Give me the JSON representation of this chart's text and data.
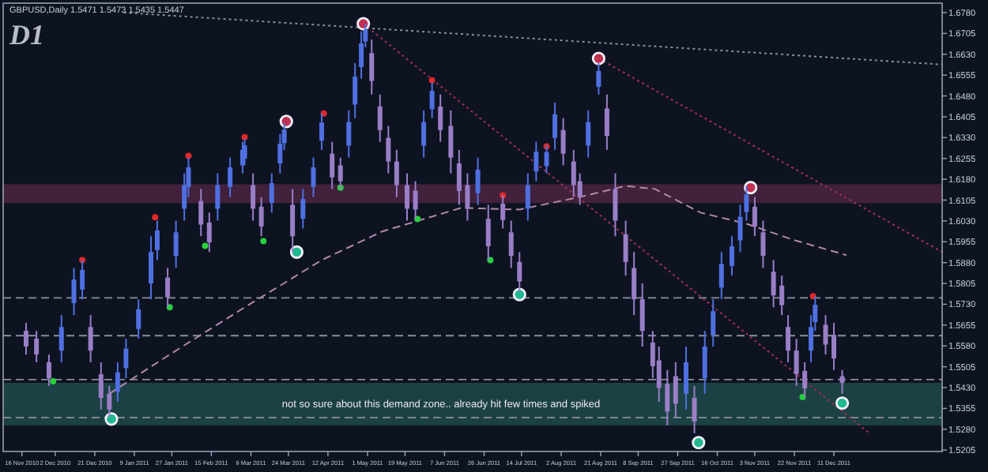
{
  "chart_data": {
    "type": "candlestick",
    "title": "GBPUSD,Daily  1.5471 1.5473 1.5435 1.5447",
    "subtitle": "D1",
    "xlim": [
      "2010-11-07",
      "2012-02-01"
    ],
    "xticks": [
      {
        "value": "2010-11-16",
        "label": "16 Nov 2010"
      },
      {
        "value": "2010-12-02",
        "label": "2 Dec 2010"
      },
      {
        "value": "2010-12-21",
        "label": "21 Dec 2010"
      },
      {
        "value": "2011-01-09",
        "label": "9 Jan 2011"
      },
      {
        "value": "2011-01-27",
        "label": "27 Jan 2011"
      },
      {
        "value": "2011-02-15",
        "label": "15 Feb 2011"
      },
      {
        "value": "2011-03-06",
        "label": "6 Mar 2011"
      },
      {
        "value": "2011-03-24",
        "label": "24 Mar 2011"
      },
      {
        "value": "2011-04-12",
        "label": "12 Apr 2011"
      },
      {
        "value": "2011-05-01",
        "label": "1 May 2011"
      },
      {
        "value": "2011-05-19",
        "label": "19 May 2011"
      },
      {
        "value": "2011-06-07",
        "label": "7 Jun 2011"
      },
      {
        "value": "2011-06-26",
        "label": "26 Jun 2011"
      },
      {
        "value": "2011-07-14",
        "label": "14 Jul 2011"
      },
      {
        "value": "2011-08-02",
        "label": "2 Aug 2011"
      },
      {
        "value": "2011-08-21",
        "label": "21 Aug 2011"
      },
      {
        "value": "2011-09-08",
        "label": "8 Sep 2011"
      },
      {
        "value": "2011-09-27",
        "label": "27 Sep 2011"
      },
      {
        "value": "2011-10-16",
        "label": "16 Oct 2011"
      },
      {
        "value": "2011-11-03",
        "label": "3 Nov 2011"
      },
      {
        "value": "2011-11-22",
        "label": "22 Nov 2011"
      },
      {
        "value": "2011-12-11",
        "label": "11 Dec 2011"
      }
    ],
    "ylim": [
      1.52,
      1.6814
    ],
    "yticks": [
      {
        "value": 1.678,
        "label": "1.6780"
      },
      {
        "value": 1.6705,
        "label": "1.6705"
      },
      {
        "value": 1.663,
        "label": "1.6630"
      },
      {
        "value": 1.6555,
        "label": "1.6555"
      },
      {
        "value": 1.648,
        "label": "1.6480"
      },
      {
        "value": 1.6405,
        "label": "1.6405"
      },
      {
        "value": 1.633,
        "label": "1.6330"
      },
      {
        "value": 1.6255,
        "label": "1.6255"
      },
      {
        "value": 1.618,
        "label": "1.6180"
      },
      {
        "value": 1.6105,
        "label": "1.6105"
      },
      {
        "value": 1.603,
        "label": "1.6030"
      },
      {
        "value": 1.5955,
        "label": "1.5955"
      },
      {
        "value": 1.588,
        "label": "1.5880"
      },
      {
        "value": 1.5805,
        "label": "1.5805"
      },
      {
        "value": 1.573,
        "label": "1.5730"
      },
      {
        "value": 1.5655,
        "label": "1.5655"
      },
      {
        "value": 1.558,
        "label": "1.5580"
      },
      {
        "value": 1.5505,
        "label": "1.5505"
      },
      {
        "value": 1.543,
        "label": "1.5430"
      },
      {
        "value": 1.5355,
        "label": "1.5355"
      },
      {
        "value": 1.528,
        "label": "1.5280"
      },
      {
        "value": 1.5205,
        "label": "1.5205"
      }
    ],
    "grid": false,
    "bands": [
      {
        "axis": "y",
        "from": 1.5294,
        "to": 1.5447,
        "color": "#1f4a4a",
        "label": "not so sure about this demand zone.. already hit few times and spiked"
      },
      {
        "axis": "y",
        "from": 1.6094,
        "to": 1.6162,
        "color": "#4a2540"
      }
    ],
    "ref_lines": [
      {
        "axis": "y",
        "value": 1.5753,
        "color": "#8a8f9c",
        "line_style": "dashed"
      },
      {
        "axis": "y",
        "value": 1.5617,
        "color": "#8a8f9c",
        "line_style": "dashed"
      },
      {
        "axis": "y",
        "value": 1.5459,
        "color": "#8a8f9c",
        "line_style": "dashed"
      },
      {
        "axis": "y",
        "value": 1.5322,
        "color": "#8a8f9c",
        "line_style": "dashed"
      }
    ],
    "series": [
      {
        "type": "line",
        "color": "#b08aa8",
        "line_style": "dashed",
        "x": [
          "2010-12-28",
          "2011-01-26",
          "2011-03-03",
          "2011-04-09",
          "2011-05-08",
          "2011-06-15",
          "2011-07-13",
          "2011-08-11",
          "2011-09-02",
          "2011-09-16",
          "2011-10-08",
          "2011-10-30",
          "2011-11-21",
          "2011-12-17"
        ],
        "values": [
          1.5408,
          1.5549,
          1.5719,
          1.5889,
          1.5992,
          1.6077,
          1.6071,
          1.6116,
          1.6156,
          1.6145,
          1.606,
          1.602,
          1.5963,
          1.5907
        ]
      },
      {
        "type": "line",
        "color": "#8a8f9c",
        "line_style": "dotted",
        "x": [
          "2011-01-04",
          "2012-02-01"
        ],
        "values": [
          1.678,
          1.6593
        ]
      },
      {
        "type": "line",
        "color": "#a03050",
        "line_style": "dotted",
        "x": [
          "2011-04-29",
          "2011-12-28"
        ],
        "values": [
          1.674,
          1.5266
        ]
      },
      {
        "type": "line",
        "color": "#a03050",
        "line_style": "dotted",
        "x": [
          "2011-08-20",
          "2012-02-01"
        ],
        "values": [
          1.6615,
          1.5918
        ]
      },
      {
        "color": "#4f70e0",
        "x": [
          "2010-12-05",
          "2010-12-11",
          "2010-12-15",
          "2011-01-01",
          "2011-01-05",
          "2011-01-11",
          "2011-01-17",
          "2011-01-20",
          "2011-01-29",
          "2011-02-02",
          "2011-02-04",
          "2011-02-18",
          "2011-02-24",
          "2011-03-02",
          "2011-03-03",
          "2011-03-16",
          "2011-03-20",
          "2011-03-22",
          "2011-03-31",
          "2011-04-05",
          "2011-04-09",
          "2011-04-22",
          "2011-04-25",
          "2011-04-28",
          "2011-04-30",
          "2011-05-28",
          "2011-06-01",
          "2011-06-23",
          "2011-07-17",
          "2011-07-21",
          "2011-07-26",
          "2011-07-30",
          "2011-08-15",
          "2011-08-20",
          "2011-10-01",
          "2011-10-10",
          "2011-10-14",
          "2011-10-18",
          "2011-10-23",
          "2011-10-27",
          "2011-10-30",
          "2011-11-30",
          "2011-12-02"
        ],
        "ohlc": [
          [
            1.5563,
            1.5691,
            1.5521,
            1.5648
          ],
          [
            1.5734,
            1.5861,
            1.5691,
            1.5819
          ],
          [
            1.5783,
            1.5889,
            1.5748,
            1.5854
          ],
          [
            1.5415,
            1.5521,
            1.5379,
            1.5485
          ],
          [
            1.55,
            1.5606,
            1.5464,
            1.557
          ],
          [
            1.5641,
            1.5748,
            1.5606,
            1.5712
          ],
          [
            1.5805,
            1.5975,
            1.5748,
            1.5918
          ],
          [
            1.5925,
            1.6031,
            1.5889,
            1.5996
          ],
          [
            1.5904,
            1.6031,
            1.5861,
            1.5989
          ],
          [
            1.6074,
            1.6201,
            1.6031,
            1.6159
          ],
          [
            1.6152,
            1.6258,
            1.6116,
            1.6223
          ],
          [
            1.6074,
            1.6201,
            1.6031,
            1.6159
          ],
          [
            1.6152,
            1.6258,
            1.6116,
            1.6223
          ],
          [
            1.623,
            1.6315,
            1.6201,
            1.6286
          ],
          [
            1.6254,
            1.6326,
            1.623,
            1.6302
          ],
          [
            1.6095,
            1.6201,
            1.606,
            1.6166
          ],
          [
            1.6237,
            1.6343,
            1.6201,
            1.6308
          ],
          [
            1.631,
            1.6383,
            1.6286,
            1.6359
          ],
          [
            1.6038,
            1.6145,
            1.6003,
            1.6109
          ],
          [
            1.6152,
            1.6258,
            1.6116,
            1.6223
          ],
          [
            1.6319,
            1.6417,
            1.6286,
            1.6384
          ],
          [
            1.6301,
            1.6428,
            1.6258,
            1.6386
          ],
          [
            1.6449,
            1.6598,
            1.64,
            1.6549
          ],
          [
            1.6584,
            1.6712,
            1.6542,
            1.6669
          ],
          [
            1.6676,
            1.674,
            1.6655,
            1.6719
          ],
          [
            1.6301,
            1.6428,
            1.6258,
            1.6386
          ],
          [
            1.6432,
            1.653,
            1.64,
            1.6498
          ],
          [
            1.613,
            1.6258,
            1.6088,
            1.6215
          ],
          [
            1.6074,
            1.6201,
            1.6031,
            1.6159
          ],
          [
            1.6208,
            1.6315,
            1.6173,
            1.6279
          ],
          [
            1.6227,
            1.6303,
            1.6201,
            1.6278
          ],
          [
            1.6329,
            1.6456,
            1.6286,
            1.6414
          ],
          [
            1.6301,
            1.6428,
            1.6258,
            1.6386
          ],
          [
            1.6513,
            1.6598,
            1.6485,
            1.657
          ],
          [
            1.5408,
            1.5578,
            1.5351,
            1.5521
          ],
          [
            1.5464,
            1.5634,
            1.5408,
            1.5578
          ],
          [
            1.562,
            1.5748,
            1.5578,
            1.5705
          ],
          [
            1.579,
            1.5918,
            1.5748,
            1.5875
          ],
          [
            1.5868,
            1.5975,
            1.5833,
            1.5939
          ],
          [
            1.596,
            1.6088,
            1.5918,
            1.6045
          ],
          [
            1.6062,
            1.6156,
            1.6031,
            1.6125
          ],
          [
            1.5563,
            1.5691,
            1.5521,
            1.5648
          ],
          [
            1.5666,
            1.5759,
            1.5634,
            1.5728
          ]
        ]
      },
      {
        "color": "#9a7ec6",
        "x": [
          "2010-11-18",
          "2010-11-23",
          "2010-11-29",
          "2010-12-19",
          "2010-12-24",
          "2010-12-28",
          "2011-01-25",
          "2011-02-10",
          "2011-02-14",
          "2011-03-07",
          "2011-03-11",
          "2011-03-26",
          "2011-04-14",
          "2011-04-18",
          "2011-05-03",
          "2011-05-07",
          "2011-05-11",
          "2011-05-15",
          "2011-05-20",
          "2011-05-24",
          "2011-06-05",
          "2011-06-10",
          "2011-06-14",
          "2011-06-18",
          "2011-06-28",
          "2011-07-05",
          "2011-07-09",
          "2011-07-13",
          "2011-08-03",
          "2011-08-08",
          "2011-08-11",
          "2011-08-24",
          "2011-08-28",
          "2011-09-02",
          "2011-09-06",
          "2011-09-10",
          "2011-09-15",
          "2011-09-18",
          "2011-09-22",
          "2011-09-26",
          "2011-10-05",
          "2011-11-03",
          "2011-11-07",
          "2011-11-12",
          "2011-11-16",
          "2011-11-19",
          "2011-11-23",
          "2011-11-27",
          "2011-12-07",
          "2011-12-11",
          "2011-12-15"
        ],
        "ohlc": [
          [
            1.5634,
            1.5663,
            1.5549,
            1.5578
          ],
          [
            1.5606,
            1.5634,
            1.5521,
            1.5549
          ],
          [
            1.5521,
            1.5549,
            1.5436,
            1.5464
          ],
          [
            1.5648,
            1.5691,
            1.5521,
            1.5563
          ],
          [
            1.5478,
            1.5521,
            1.5351,
            1.5393
          ],
          [
            1.5408,
            1.5436,
            1.5323,
            1.5351
          ],
          [
            1.5826,
            1.5861,
            1.5719,
            1.5755
          ],
          [
            1.6102,
            1.6145,
            1.5975,
            1.6017
          ],
          [
            1.6024,
            1.606,
            1.5918,
            1.5953
          ],
          [
            1.6159,
            1.6201,
            1.6031,
            1.6074
          ],
          [
            1.6081,
            1.6116,
            1.5975,
            1.601
          ],
          [
            1.6088,
            1.6145,
            1.5918,
            1.5975
          ],
          [
            1.6272,
            1.6315,
            1.6145,
            1.6187
          ],
          [
            1.623,
            1.6258,
            1.6145,
            1.6173
          ],
          [
            1.6634,
            1.6683,
            1.6485,
            1.6534
          ],
          [
            1.6442,
            1.6485,
            1.6315,
            1.6357
          ],
          [
            1.6329,
            1.6372,
            1.6201,
            1.6244
          ],
          [
            1.6244,
            1.6286,
            1.6116,
            1.6159
          ],
          [
            1.6159,
            1.6201,
            1.6031,
            1.6074
          ],
          [
            1.6139,
            1.6173,
            1.6037,
            1.6071
          ],
          [
            1.6442,
            1.6485,
            1.6315,
            1.6357
          ],
          [
            1.6372,
            1.6428,
            1.6201,
            1.6258
          ],
          [
            1.6237,
            1.6286,
            1.6088,
            1.6138
          ],
          [
            1.6159,
            1.6201,
            1.6031,
            1.6074
          ],
          [
            1.6038,
            1.6088,
            1.5889,
            1.5939
          ],
          [
            1.6092,
            1.6122,
            1.6003,
            1.6033
          ],
          [
            1.5989,
            1.6031,
            1.5861,
            1.5904
          ],
          [
            1.5882,
            1.5918,
            1.5776,
            1.5812
          ],
          [
            1.6357,
            1.64,
            1.623,
            1.6272
          ],
          [
            1.6244,
            1.6286,
            1.6116,
            1.6159
          ],
          [
            1.6173,
            1.6201,
            1.6088,
            1.6116
          ],
          [
            1.6435,
            1.6485,
            1.6286,
            1.6336
          ],
          [
            1.6145,
            1.6201,
            1.5975,
            1.6031
          ],
          [
            1.5982,
            1.6031,
            1.5833,
            1.5882
          ],
          [
            1.5861,
            1.5918,
            1.5691,
            1.5748
          ],
          [
            1.5748,
            1.5805,
            1.5578,
            1.5634
          ],
          [
            1.5592,
            1.5634,
            1.5464,
            1.5507
          ],
          [
            1.5528,
            1.5578,
            1.5379,
            1.5429
          ],
          [
            1.5443,
            1.5493,
            1.5294,
            1.5344
          ],
          [
            1.5471,
            1.5521,
            1.5323,
            1.5372
          ],
          [
            1.5393,
            1.5436,
            1.5266,
            1.5308
          ],
          [
            1.6081,
            1.6116,
            1.5975,
            1.601
          ],
          [
            1.5989,
            1.6031,
            1.5861,
            1.5904
          ],
          [
            1.5847,
            1.5889,
            1.5719,
            1.5762
          ],
          [
            1.5797,
            1.5833,
            1.5691,
            1.5727
          ],
          [
            1.5648,
            1.5691,
            1.5521,
            1.5563
          ],
          [
            1.5563,
            1.5606,
            1.5436,
            1.5478
          ],
          [
            1.549,
            1.5521,
            1.5396,
            1.5427
          ],
          [
            1.5656,
            1.5691,
            1.5549,
            1.5585
          ],
          [
            1.562,
            1.5663,
            1.5493,
            1.5535
          ],
          [
            1.5471,
            1.5493,
            1.5408,
            1.5447
          ]
        ]
      },
      {
        "type": "scatter",
        "color": "#e02828",
        "marker": "circle",
        "x": [
          "2010-12-15",
          "2011-01-19",
          "2011-02-04",
          "2011-03-03",
          "2011-04-10",
          "2011-06-01",
          "2011-07-05",
          "2011-07-26",
          "2011-12-01"
        ],
        "values": [
          1.5889,
          1.6043,
          1.6264,
          1.6332,
          1.6417,
          1.6536,
          1.6122,
          1.6298,
          1.5759
        ]
      },
      {
        "type": "scatter",
        "color": "#28d040",
        "marker": "circle",
        "x": [
          "2010-12-01",
          "2011-01-26",
          "2011-02-12",
          "2011-03-12",
          "2011-04-18",
          "2011-05-25",
          "2011-06-29",
          "2011-11-26"
        ],
        "values": [
          1.5453,
          1.5719,
          1.594,
          1.5957,
          1.615,
          1.6037,
          1.5889,
          1.5396
        ]
      },
      {
        "type": "bubble",
        "color": "#c03050",
        "marker": "circle",
        "x": [
          "2011-03-23",
          "2011-04-29",
          "2011-08-20",
          "2011-11-01"
        ],
        "values": [
          1.6388,
          1.674,
          1.6615,
          1.615
        ],
        "sizes": [
          1,
          1,
          1,
          1
        ]
      },
      {
        "type": "bubble",
        "color": "#20b890",
        "marker": "circle",
        "x": [
          "2010-12-29",
          "2011-03-28",
          "2011-07-13",
          "2011-10-07",
          "2011-12-15"
        ],
        "values": [
          1.5317,
          1.5918,
          1.5765,
          1.5232,
          1.5374
        ],
        "sizes": [
          1,
          1,
          1,
          1,
          1
        ]
      }
    ]
  }
}
